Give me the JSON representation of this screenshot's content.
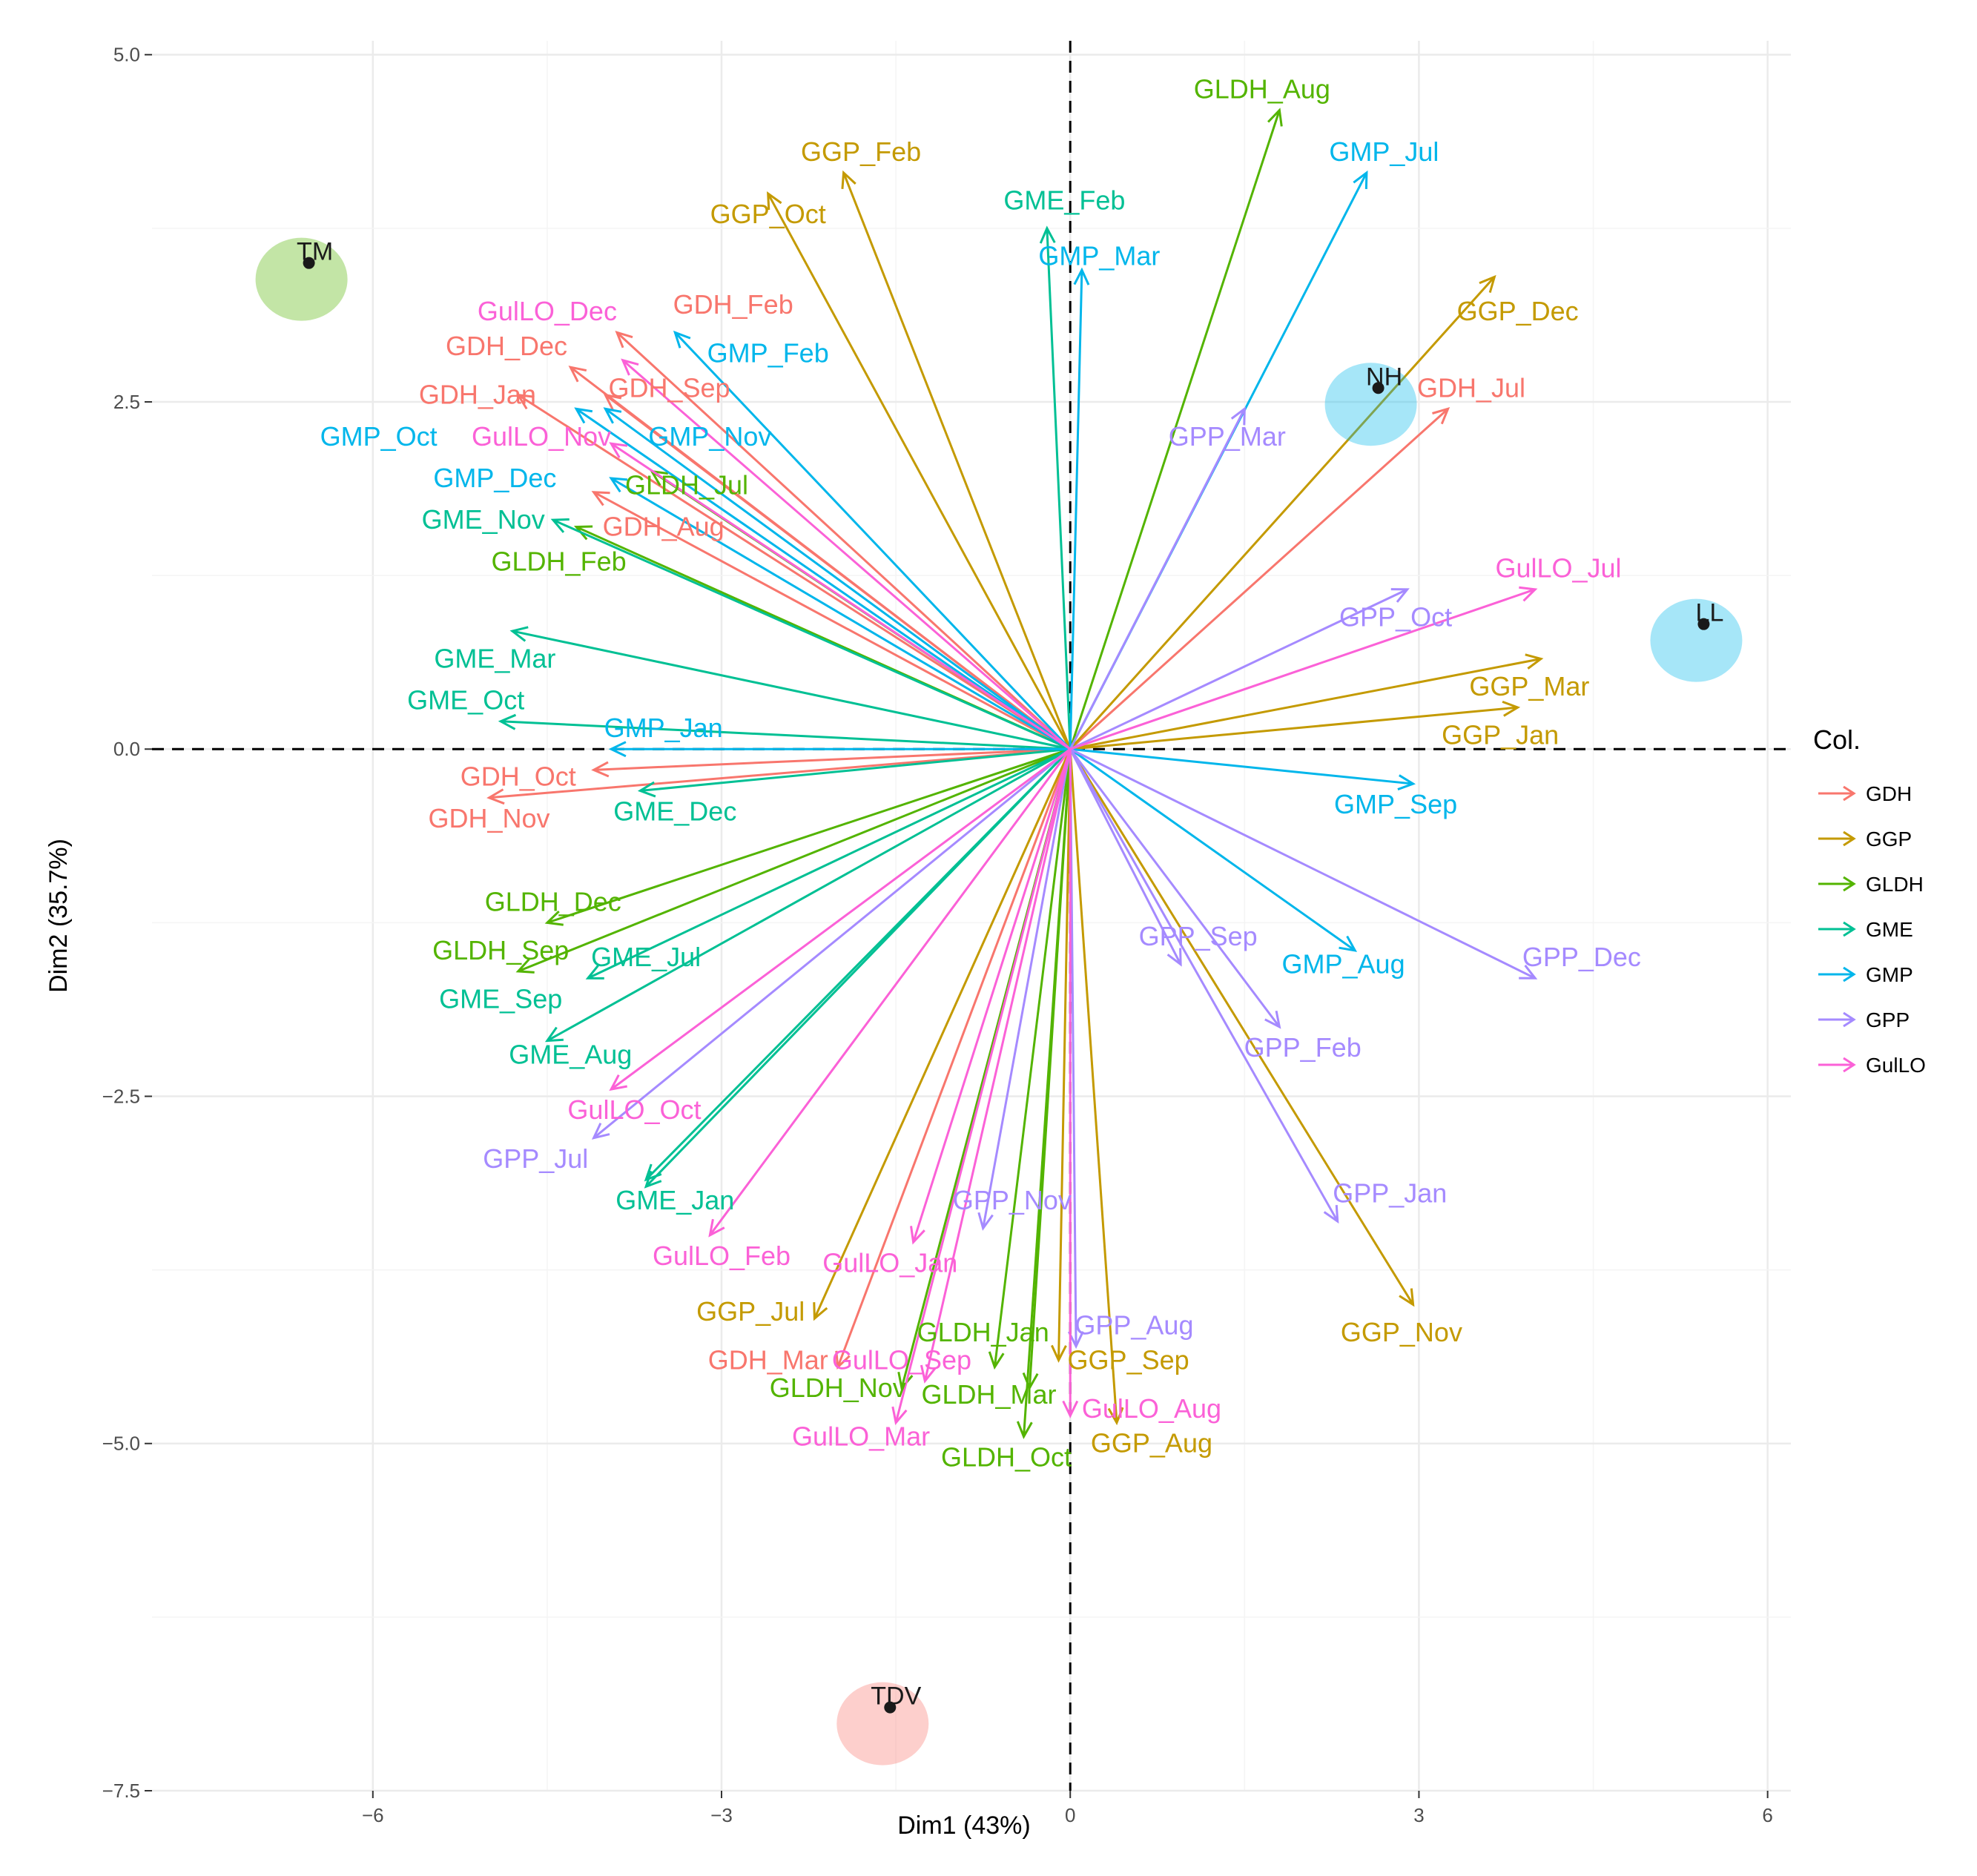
{
  "chart_data": {
    "type": "scatter",
    "subtype": "pca-biplot",
    "xlabel": "Dim1 (43%)",
    "ylabel": "Dim2 (35.7%)",
    "xlim": [
      -7.9,
      6.2
    ],
    "ylim": [
      -7.5,
      5.1
    ],
    "x_ticks": [
      -6,
      -3,
      0,
      3,
      6
    ],
    "x_tick_labels": [
      "−6",
      "−3",
      "0",
      "3",
      "6"
    ],
    "y_ticks": [
      5,
      2.5,
      0,
      -2.5,
      -5,
      -7.5
    ],
    "y_tick_labels": [
      "5.0",
      "2.5",
      "0.0",
      "−2.5",
      "−5.0",
      "−7.5"
    ],
    "grid": true,
    "legend": {
      "title": "Col.",
      "position": "right",
      "entries": [
        {
          "name": "GDH",
          "label": "GDH",
          "color": "#F8766D"
        },
        {
          "name": "GGP",
          "label": "GGP",
          "color": "#C49A00"
        },
        {
          "name": "GLDH",
          "label": "GLDH",
          "color": "#53B400"
        },
        {
          "name": "GME",
          "label": "GME",
          "color": "#00C094"
        },
        {
          "name": "GMP",
          "label": "GMP",
          "color": "#00B6EB"
        },
        {
          "name": "GPP",
          "label": "GPP",
          "color": "#A58AFF"
        },
        {
          "name": "GulLO",
          "label": "GulLO",
          "color": "#FB61D7"
        }
      ]
    },
    "individuals": [
      {
        "label": "TM",
        "x": -6.55,
        "y": 3.5,
        "color": "#53B400"
      },
      {
        "label": "NH",
        "x": 2.65,
        "y": 2.6,
        "color": "#00B6EB"
      },
      {
        "label": "LL",
        "x": 5.45,
        "y": 0.9,
        "color": "#00B6EB"
      },
      {
        "label": "TDV",
        "x": -1.55,
        "y": -6.9,
        "color": "#F8766D"
      }
    ],
    "variables": [
      {
        "label": "GDH_Feb",
        "group": "GDH",
        "x": -3.9,
        "y": 3.0,
        "lx": -2.9,
        "ly": 3.2
      },
      {
        "label": "GDH_Dec",
        "group": "GDH",
        "x": -4.3,
        "y": 2.75,
        "lx": -4.85,
        "ly": 2.9
      },
      {
        "label": "GDH_Jan",
        "group": "GDH",
        "x": -4.75,
        "y": 2.55,
        "lx": -5.1,
        "ly": 2.55
      },
      {
        "label": "GDH_Sep",
        "group": "GDH",
        "x": -4.0,
        "y": 2.55,
        "lx": -3.45,
        "ly": 2.6
      },
      {
        "label": "GDH_Aug",
        "group": "GDH",
        "x": -4.1,
        "y": 1.85,
        "lx": -3.5,
        "ly": 1.6
      },
      {
        "label": "GDH_Jul",
        "group": "GDH",
        "x": 3.25,
        "y": 2.45,
        "lx": 3.45,
        "ly": 2.6
      },
      {
        "label": "GDH_Oct",
        "group": "GDH",
        "x": -4.1,
        "y": -0.15,
        "lx": -4.75,
        "ly": -0.2
      },
      {
        "label": "GDH_Nov",
        "group": "GDH",
        "x": -5.0,
        "y": -0.35,
        "lx": -5.0,
        "ly": -0.5
      },
      {
        "label": "GDH_Mar",
        "group": "GDH",
        "x": -2.0,
        "y": -4.45,
        "lx": -2.6,
        "ly": -4.4
      },
      {
        "label": "GGP_Feb",
        "group": "GGP",
        "x": -1.95,
        "y": 4.15,
        "lx": -1.8,
        "ly": 4.3
      },
      {
        "label": "GGP_Oct",
        "group": "GGP",
        "x": -2.6,
        "y": 4.0,
        "lx": -2.6,
        "ly": 3.85
      },
      {
        "label": "GGP_Dec",
        "group": "GGP",
        "x": 3.65,
        "y": 3.4,
        "lx": 3.85,
        "ly": 3.15
      },
      {
        "label": "GGP_Mar",
        "group": "GGP",
        "x": 4.05,
        "y": 0.65,
        "lx": 3.95,
        "ly": 0.45
      },
      {
        "label": "GGP_Jan",
        "group": "GGP",
        "x": 3.85,
        "y": 0.3,
        "lx": 3.7,
        "ly": 0.1
      },
      {
        "label": "GGP_Nov",
        "group": "GGP",
        "x": 2.95,
        "y": -4.0,
        "lx": 2.85,
        "ly": -4.2
      },
      {
        "label": "GGP_Jul",
        "group": "GGP",
        "x": -2.2,
        "y": -4.1,
        "lx": -2.75,
        "ly": -4.05
      },
      {
        "label": "GGP_Sep",
        "group": "GGP",
        "x": -0.1,
        "y": -4.4,
        "lx": 0.5,
        "ly": -4.4
      },
      {
        "label": "GGP_Aug",
        "group": "GGP",
        "x": 0.4,
        "y": -4.85,
        "lx": 0.7,
        "ly": -5.0
      },
      {
        "label": "GLDH_Aug",
        "group": "GLDH",
        "x": 1.8,
        "y": 4.6,
        "lx": 1.65,
        "ly": 4.75
      },
      {
        "label": "GLDH_Jul",
        "group": "GLDH",
        "x": -3.6,
        "y": 2.0,
        "lx": -3.3,
        "ly": 1.9
      },
      {
        "label": "GLDH_Feb",
        "group": "GLDH",
        "x": -4.25,
        "y": 1.6,
        "lx": -4.4,
        "ly": 1.35
      },
      {
        "label": "GLDH_Dec",
        "group": "GLDH",
        "x": -4.5,
        "y": -1.25,
        "lx": -4.45,
        "ly": -1.1
      },
      {
        "label": "GLDH_Sep",
        "group": "GLDH",
        "x": -4.75,
        "y": -1.6,
        "lx": -4.9,
        "ly": -1.45
      },
      {
        "label": "GLDH_Jan",
        "group": "GLDH",
        "x": -0.65,
        "y": -4.45,
        "lx": -0.75,
        "ly": -4.2
      },
      {
        "label": "GLDH_Nov",
        "group": "GLDH",
        "x": -1.45,
        "y": -4.6,
        "lx": -2.0,
        "ly": -4.6
      },
      {
        "label": "GLDH_Mar",
        "group": "GLDH",
        "x": -0.35,
        "y": -4.6,
        "lx": -0.7,
        "ly": -4.65
      },
      {
        "label": "GLDH_Oct",
        "group": "GLDH",
        "x": -0.4,
        "y": -4.95,
        "lx": -0.55,
        "ly": -5.1
      },
      {
        "label": "GME_Feb",
        "group": "GME",
        "x": -0.2,
        "y": 3.75,
        "lx": -0.05,
        "ly": 3.95
      },
      {
        "label": "GME_Nov",
        "group": "GME",
        "x": -4.45,
        "y": 1.65,
        "lx": -5.05,
        "ly": 1.65
      },
      {
        "label": "GME_Mar",
        "group": "GME",
        "x": -4.8,
        "y": 0.85,
        "lx": -4.95,
        "ly": 0.65
      },
      {
        "label": "GME_Oct",
        "group": "GME",
        "x": -4.9,
        "y": 0.2,
        "lx": -5.2,
        "ly": 0.35
      },
      {
        "label": "GME_Dec",
        "group": "GME",
        "x": -3.7,
        "y": -0.3,
        "lx": -3.4,
        "ly": -0.45
      },
      {
        "label": "GME_Jul",
        "group": "GME",
        "x": -4.15,
        "y": -1.65,
        "lx": -3.65,
        "ly": -1.5
      },
      {
        "label": "GME_Sep",
        "group": "GME",
        "x": -4.5,
        "y": -2.1,
        "lx": -4.9,
        "ly": -1.8
      },
      {
        "label": "GME_Aug",
        "group": "GME",
        "x": -3.65,
        "y": -3.1,
        "lx": -4.3,
        "ly": -2.2
      },
      {
        "label": "GME_Jan",
        "group": "GME",
        "x": -3.65,
        "y": -3.15,
        "lx": -3.4,
        "ly": -3.25
      },
      {
        "label": "GMP_Jul",
        "group": "GMP",
        "x": 2.55,
        "y": 4.15,
        "lx": 2.7,
        "ly": 4.3
      },
      {
        "label": "GMP_Mar",
        "group": "GMP",
        "x": 0.1,
        "y": 3.45,
        "lx": 0.25,
        "ly": 3.55
      },
      {
        "label": "GMP_Feb",
        "group": "GMP",
        "x": -3.4,
        "y": 3.0,
        "lx": -2.6,
        "ly": 2.85
      },
      {
        "label": "GMP_Oct",
        "group": "GMP",
        "x": -4.25,
        "y": 2.45,
        "lx": -5.95,
        "ly": 2.25
      },
      {
        "label": "GMP_Nov",
        "group": "GMP",
        "x": -4.0,
        "y": 2.45,
        "lx": -3.1,
        "ly": 2.25
      },
      {
        "label": "GMP_Dec",
        "group": "GMP",
        "x": -3.95,
        "y": 1.95,
        "lx": -4.95,
        "ly": 1.95
      },
      {
        "label": "GMP_Jan",
        "group": "GMP",
        "x": -3.95,
        "y": 0.0,
        "lx": -3.5,
        "ly": 0.15
      },
      {
        "label": "GMP_Sep",
        "group": "GMP",
        "x": 2.95,
        "y": -0.25,
        "lx": 2.8,
        "ly": -0.4
      },
      {
        "label": "GMP_Aug",
        "group": "GMP",
        "x": 2.45,
        "y": -1.45,
        "lx": 2.35,
        "ly": -1.55
      },
      {
        "label": "GPP_Mar",
        "group": "GPP",
        "x": 1.5,
        "y": 2.45,
        "lx": 1.35,
        "ly": 2.25
      },
      {
        "label": "GPP_Oct",
        "group": "GPP",
        "x": 2.9,
        "y": 1.15,
        "lx": 2.8,
        "ly": 0.95
      },
      {
        "label": "GPP_Dec",
        "group": "GPP",
        "x": 4.0,
        "y": -1.65,
        "lx": 4.4,
        "ly": -1.5
      },
      {
        "label": "GPP_Sep",
        "group": "GPP",
        "x": 0.95,
        "y": -1.55,
        "lx": 1.1,
        "ly": -1.35
      },
      {
        "label": "GPP_Feb",
        "group": "GPP",
        "x": 1.8,
        "y": -2.0,
        "lx": 2.0,
        "ly": -2.15
      },
      {
        "label": "GPP_Jul",
        "group": "GPP",
        "x": -4.1,
        "y": -2.8,
        "lx": -4.6,
        "ly": -2.95
      },
      {
        "label": "GPP_Nov",
        "group": "GPP",
        "x": -0.75,
        "y": -3.45,
        "lx": -0.5,
        "ly": -3.25
      },
      {
        "label": "GPP_Jan",
        "group": "GPP",
        "x": 2.3,
        "y": -3.4,
        "lx": 2.75,
        "ly": -3.2
      },
      {
        "label": "GPP_Aug",
        "group": "GPP",
        "x": 0.05,
        "y": -4.3,
        "lx": 0.55,
        "ly": -4.15
      },
      {
        "label": "GulLO_Dec",
        "group": "GulLO",
        "x": -3.85,
        "y": 2.8,
        "lx": -4.5,
        "ly": 3.15
      },
      {
        "label": "GulLO_Nov",
        "group": "GulLO",
        "x": -3.95,
        "y": 2.2,
        "lx": -4.55,
        "ly": 2.25
      },
      {
        "label": "GulLO_Jul",
        "group": "GulLO",
        "x": 4.0,
        "y": 1.15,
        "lx": 4.2,
        "ly": 1.3
      },
      {
        "label": "GulLO_Oct",
        "group": "GulLO",
        "x": -3.95,
        "y": -2.45,
        "lx": -3.75,
        "ly": -2.6
      },
      {
        "label": "GulLO_Feb",
        "group": "GulLO",
        "x": -3.1,
        "y": -3.5,
        "lx": -3.0,
        "ly": -3.65
      },
      {
        "label": "GulLO_Jan",
        "group": "GulLO",
        "x": -1.35,
        "y": -3.55,
        "lx": -1.55,
        "ly": -3.7
      },
      {
        "label": "GulLO_Sep",
        "group": "GulLO",
        "x": -1.25,
        "y": -4.55,
        "lx": -1.45,
        "ly": -4.4
      },
      {
        "label": "GulLO_Mar",
        "group": "GulLO",
        "x": -1.5,
        "y": -4.85,
        "lx": -1.8,
        "ly": -4.95
      },
      {
        "label": "GulLO_Aug",
        "group": "GulLO",
        "x": 0.0,
        "y": -4.8,
        "lx": 0.7,
        "ly": -4.75
      }
    ]
  }
}
